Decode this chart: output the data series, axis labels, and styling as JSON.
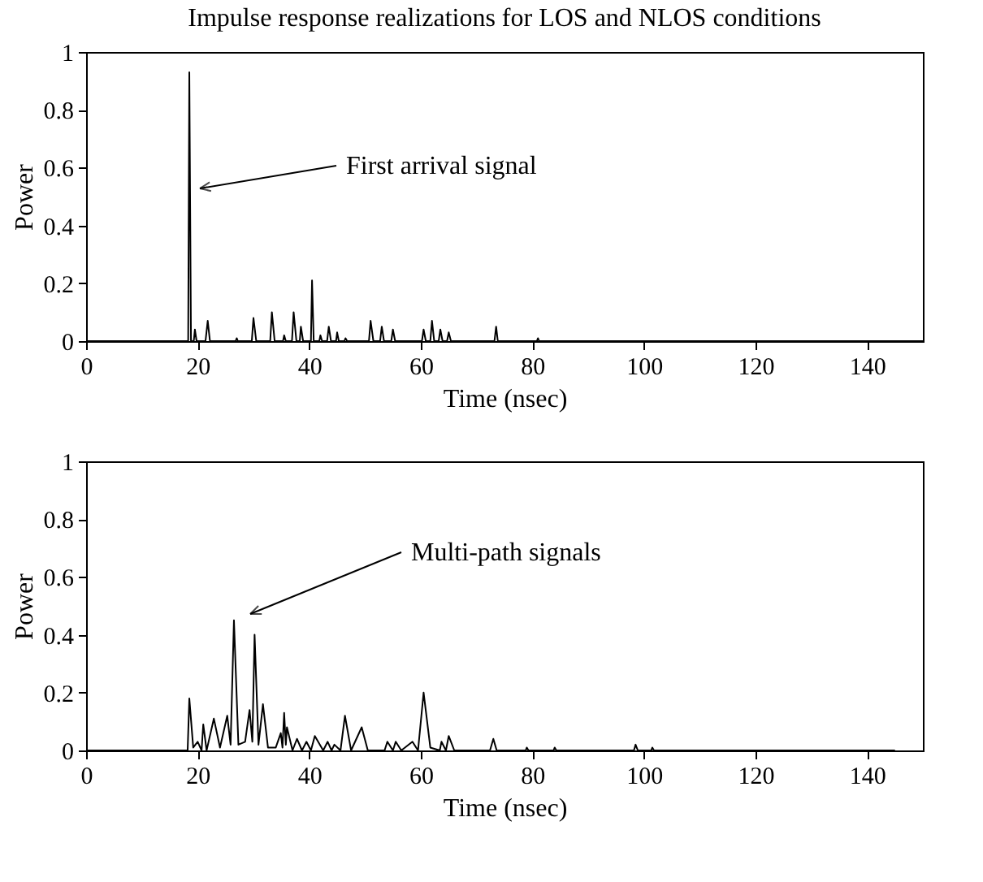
{
  "chart_data": [
    {
      "type": "line",
      "title": "Impulse response realizations for LOS and NLOS conditions",
      "xlabel": "Time (nsec)",
      "ylabel": "Power",
      "x": [
        0,
        18.3,
        18.5,
        18.8,
        19.3,
        19.5,
        19.8,
        21.4,
        21.8,
        22.2,
        26.8,
        27,
        27.2,
        29.7,
        30,
        30.5,
        33,
        33.3,
        33.8,
        35.3,
        35.5,
        35.8,
        36.9,
        37.2,
        37.7,
        38.3,
        38.5,
        38.9,
        40.3,
        40.5,
        40.8,
        41.8,
        42,
        42.3,
        43.2,
        43.5,
        43.9,
        44.8,
        45,
        45.3,
        46.3,
        46.5,
        46.8,
        50.7,
        51,
        51.5,
        52.7,
        53,
        53.4,
        54.7,
        55,
        55.4,
        60.2,
        60.5,
        60.9,
        61.7,
        62,
        62.4,
        63.2,
        63.5,
        63.9,
        64.7,
        65,
        65.4,
        73.2,
        73.5,
        73.8,
        80.8,
        81,
        81.2,
        150
      ],
      "series": [
        {
          "color": "#000000",
          "values": [
            0,
            0,
            0.93,
            0,
            0,
            0.04,
            0,
            0,
            0.07,
            0,
            0,
            0.01,
            0,
            0,
            0.08,
            0,
            0,
            0.1,
            0,
            0,
            0.02,
            0,
            0,
            0.1,
            0,
            0,
            0.05,
            0,
            0,
            0.21,
            0,
            0,
            0.02,
            0,
            0,
            0.05,
            0,
            0,
            0.03,
            0,
            0,
            0.01,
            0,
            0,
            0.07,
            0,
            0,
            0.05,
            0,
            0,
            0.04,
            0,
            0,
            0.04,
            0,
            0,
            0.07,
            0,
            0,
            0.04,
            0,
            0,
            0.03,
            0,
            0,
            0.05,
            0,
            0,
            0.01,
            0,
            0
          ]
        }
      ],
      "xlim": [
        0,
        150
      ],
      "xticks": [
        0,
        20,
        40,
        60,
        80,
        100,
        120,
        140
      ],
      "ylim": [
        0,
        1
      ],
      "yticks": [
        0,
        0.2,
        0.4,
        0.6,
        0.8,
        1
      ],
      "annotations": [
        "First arrival signal"
      ],
      "grid": false,
      "legend": false,
      "marker": "none",
      "line_style": "solid"
    },
    {
      "type": "line",
      "xlabel": "Time (nsec)",
      "ylabel": "Power",
      "x": [
        0,
        18.2,
        18.5,
        19.2,
        20,
        20.7,
        21,
        21.6,
        22.9,
        24,
        25.3,
        25.9,
        26.5,
        27.3,
        28.5,
        29.3,
        29.8,
        30.2,
        30.9,
        31.7,
        32.6,
        34,
        34.9,
        35.2,
        35.5,
        35.8,
        36,
        37,
        37.8,
        38.7,
        39.5,
        40.3,
        41,
        42.5,
        43.3,
        44,
        44.5,
        45.6,
        46.4,
        47.5,
        49.4,
        50.5,
        53.5,
        54,
        55,
        55.5,
        56.5,
        58.5,
        59.5,
        60.5,
        61.7,
        63.4,
        63.7,
        64.5,
        65,
        66,
        72.4,
        73,
        73.6,
        78.8,
        79,
        79.3,
        83.8,
        84,
        84.3,
        98.2,
        98.5,
        98.9,
        101.3,
        101.5,
        101.8,
        145
      ],
      "series": [
        {
          "color": "#000000",
          "values": [
            0,
            0,
            0.18,
            0.01,
            0.03,
            0,
            0.09,
            0,
            0.11,
            0.01,
            0.12,
            0.02,
            0.45,
            0.02,
            0.03,
            0.14,
            0.03,
            0.4,
            0.02,
            0.16,
            0.01,
            0.01,
            0.06,
            0.01,
            0.13,
            0.02,
            0.08,
            0,
            0.04,
            0,
            0.03,
            0,
            0.05,
            0,
            0.03,
            0,
            0.02,
            0,
            0.12,
            0,
            0.08,
            0,
            0,
            0.03,
            0,
            0.03,
            0,
            0.03,
            0,
            0.2,
            0.01,
            0,
            0.03,
            0,
            0.05,
            0,
            0,
            0.04,
            0,
            0,
            0.01,
            0,
            0,
            0.01,
            0,
            0,
            0.02,
            0,
            0,
            0.01,
            0,
            0
          ]
        }
      ],
      "xlim": [
        0,
        150
      ],
      "xticks": [
        0,
        20,
        40,
        60,
        80,
        100,
        120,
        140
      ],
      "ylim": [
        0,
        1
      ],
      "yticks": [
        0,
        0.2,
        0.4,
        0.6,
        0.8,
        1
      ],
      "annotations": [
        "Multi-path signals"
      ],
      "grid": false,
      "legend": false,
      "marker": "none",
      "line_style": "solid"
    }
  ]
}
